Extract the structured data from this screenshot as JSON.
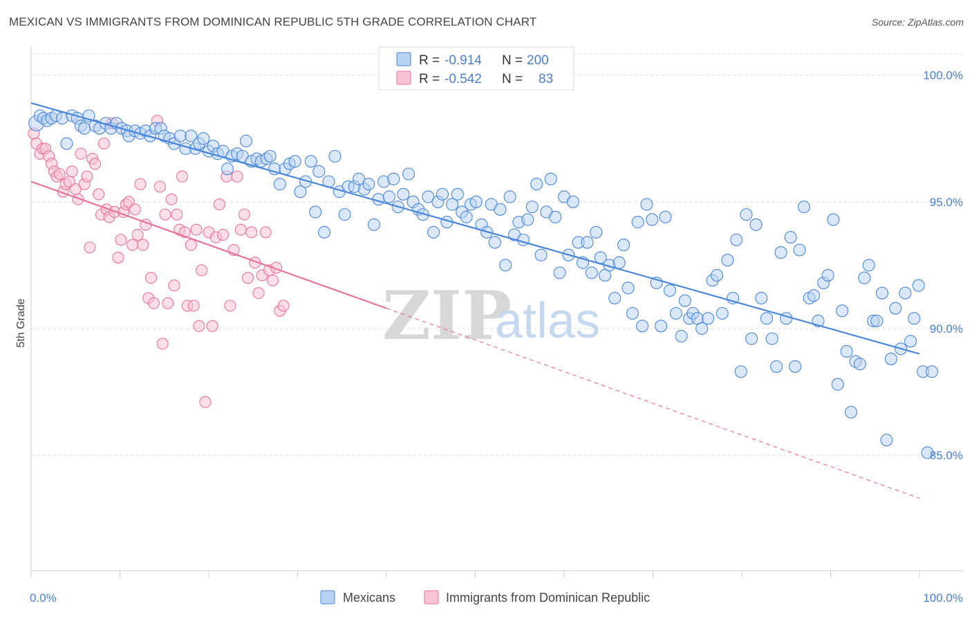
{
  "title": "MEXICAN VS IMMIGRANTS FROM DOMINICAN REPUBLIC 5TH GRADE CORRELATION CHART",
  "source": "Source: ZipAtlas.com",
  "watermark": {
    "zip": "ZIP",
    "atlas": "atlas"
  },
  "colors": {
    "blue": "#4a86d9",
    "blue_fill": "#b8d2f3",
    "pink": "#e8739a",
    "pink_fill": "#f7c3d4",
    "grid": "#dcdcdc",
    "tick_text": "#4a7fcf"
  },
  "legend_top": {
    "rows": [
      {
        "r_label": "R =",
        "r_value": "-0.914",
        "n_label": "N =",
        "n_value": "200"
      },
      {
        "r_label": "R =",
        "r_value": "-0.542",
        "n_label": "N =",
        "n_value": "83"
      }
    ]
  },
  "legend_bottom": {
    "items": [
      "Mexicans",
      "Immigrants from Dominican Republic"
    ]
  },
  "chart_data": {
    "type": "scatter",
    "title": "MEXICAN VS IMMIGRANTS FROM DOMINICAN REPUBLIC 5TH GRADE CORRELATION CHART",
    "xlabel": "",
    "ylabel": "5th Grade",
    "xlim": [
      0,
      100
    ],
    "ylim": [
      80.5,
      101.0
    ],
    "x_tick_labels": [
      "0.0%",
      "100.0%"
    ],
    "y_ticks": [
      85,
      90,
      95,
      100
    ],
    "y_tick_labels": [
      "85.0%",
      "90.0%",
      "95.0%",
      "100.0%"
    ],
    "grid": true,
    "legend_position": "bottom",
    "series": [
      {
        "name": "Mexicans",
        "r": -0.914,
        "n": 200,
        "trend": {
          "x": [
            0,
            100
          ],
          "y": [
            98.9,
            89.0
          ]
        },
        "points": [
          [
            0.6,
            98.1
          ],
          [
            1.0,
            98.4
          ],
          [
            1.4,
            98.3
          ],
          [
            1.8,
            98.2
          ],
          [
            2.3,
            98.3
          ],
          [
            2.8,
            98.4
          ],
          [
            3.5,
            98.3
          ],
          [
            4.0,
            97.3
          ],
          [
            4.6,
            98.4
          ],
          [
            5.2,
            98.3
          ],
          [
            5.6,
            98.0
          ],
          [
            6.0,
            97.9
          ],
          [
            6.5,
            98.4
          ],
          [
            7.2,
            98.0
          ],
          [
            7.7,
            97.9
          ],
          [
            8.4,
            98.1
          ],
          [
            9.0,
            97.9
          ],
          [
            9.6,
            98.1
          ],
          [
            10.2,
            97.9
          ],
          [
            10.8,
            97.8
          ],
          [
            11.0,
            97.6
          ],
          [
            11.7,
            97.8
          ],
          [
            12.3,
            97.7
          ],
          [
            12.9,
            97.8
          ],
          [
            13.4,
            97.6
          ],
          [
            14.0,
            97.9
          ],
          [
            14.6,
            97.9
          ],
          [
            15.0,
            97.6
          ],
          [
            15.6,
            97.5
          ],
          [
            16.1,
            97.3
          ],
          [
            16.8,
            97.6
          ],
          [
            17.4,
            97.1
          ],
          [
            18.0,
            97.6
          ],
          [
            18.5,
            97.1
          ],
          [
            18.9,
            97.3
          ],
          [
            19.4,
            97.5
          ],
          [
            20.0,
            97.0
          ],
          [
            20.5,
            97.2
          ],
          [
            21.0,
            96.9
          ],
          [
            21.6,
            97.0
          ],
          [
            22.1,
            96.3
          ],
          [
            22.6,
            96.8
          ],
          [
            23.2,
            96.9
          ],
          [
            23.8,
            96.8
          ],
          [
            24.2,
            97.4
          ],
          [
            24.8,
            96.6
          ],
          [
            25.4,
            96.7
          ],
          [
            25.9,
            96.6
          ],
          [
            26.5,
            96.7
          ],
          [
            26.9,
            96.8
          ],
          [
            27.4,
            96.3
          ],
          [
            28.0,
            95.7
          ],
          [
            28.6,
            96.3
          ],
          [
            29.1,
            96.5
          ],
          [
            29.7,
            96.6
          ],
          [
            30.3,
            95.4
          ],
          [
            30.9,
            95.8
          ],
          [
            31.5,
            96.6
          ],
          [
            32.0,
            94.6
          ],
          [
            32.4,
            96.2
          ],
          [
            33.0,
            93.8
          ],
          [
            33.5,
            95.8
          ],
          [
            34.2,
            96.8
          ],
          [
            34.7,
            95.4
          ],
          [
            35.3,
            94.5
          ],
          [
            35.7,
            95.6
          ],
          [
            36.4,
            95.6
          ],
          [
            36.9,
            95.9
          ],
          [
            37.5,
            95.5
          ],
          [
            38.0,
            95.7
          ],
          [
            38.6,
            94.1
          ],
          [
            39.1,
            95.1
          ],
          [
            39.7,
            95.8
          ],
          [
            40.3,
            95.2
          ],
          [
            40.8,
            95.9
          ],
          [
            41.3,
            94.8
          ],
          [
            41.9,
            95.3
          ],
          [
            42.5,
            96.1
          ],
          [
            43.0,
            95.0
          ],
          [
            43.6,
            94.7
          ],
          [
            44.1,
            94.5
          ],
          [
            44.7,
            95.2
          ],
          [
            45.3,
            93.8
          ],
          [
            45.8,
            95.0
          ],
          [
            46.3,
            95.3
          ],
          [
            46.8,
            94.2
          ],
          [
            47.4,
            94.9
          ],
          [
            48.0,
            95.3
          ],
          [
            48.5,
            94.6
          ],
          [
            49.0,
            94.4
          ],
          [
            49.5,
            94.9
          ],
          [
            50.1,
            95.0
          ],
          [
            50.7,
            94.1
          ],
          [
            51.3,
            93.8
          ],
          [
            51.8,
            94.9
          ],
          [
            52.2,
            93.4
          ],
          [
            52.8,
            94.7
          ],
          [
            53.4,
            92.5
          ],
          [
            53.9,
            95.2
          ],
          [
            54.4,
            93.7
          ],
          [
            54.9,
            94.2
          ],
          [
            55.4,
            93.5
          ],
          [
            55.9,
            94.3
          ],
          [
            56.4,
            94.8
          ],
          [
            56.9,
            95.7
          ],
          [
            57.4,
            92.9
          ],
          [
            58.0,
            94.6
          ],
          [
            58.5,
            95.9
          ],
          [
            59.0,
            94.4
          ],
          [
            59.5,
            92.2
          ],
          [
            60.0,
            95.2
          ],
          [
            60.5,
            92.9
          ],
          [
            61.0,
            95.0
          ],
          [
            61.6,
            93.4
          ],
          [
            62.1,
            92.6
          ],
          [
            62.6,
            93.4
          ],
          [
            63.1,
            92.2
          ],
          [
            63.6,
            93.8
          ],
          [
            64.1,
            92.8
          ],
          [
            64.6,
            92.1
          ],
          [
            65.1,
            92.5
          ],
          [
            65.7,
            91.2
          ],
          [
            66.2,
            92.6
          ],
          [
            66.7,
            93.3
          ],
          [
            67.2,
            91.6
          ],
          [
            67.7,
            90.6
          ],
          [
            68.3,
            94.2
          ],
          [
            68.8,
            90.1
          ],
          [
            69.3,
            94.9
          ],
          [
            69.9,
            94.3
          ],
          [
            70.4,
            91.8
          ],
          [
            70.9,
            90.1
          ],
          [
            71.4,
            94.4
          ],
          [
            71.9,
            91.5
          ],
          [
            72.6,
            90.6
          ],
          [
            73.2,
            89.7
          ],
          [
            73.6,
            91.1
          ],
          [
            74.1,
            90.4
          ],
          [
            74.5,
            90.6
          ],
          [
            75.0,
            90.4
          ],
          [
            75.5,
            90.0
          ],
          [
            76.2,
            90.4
          ],
          [
            76.7,
            91.9
          ],
          [
            77.2,
            92.1
          ],
          [
            77.8,
            90.6
          ],
          [
            78.4,
            92.7
          ],
          [
            79.0,
            91.2
          ],
          [
            79.4,
            93.5
          ],
          [
            79.9,
            88.3
          ],
          [
            80.5,
            94.5
          ],
          [
            81.1,
            89.6
          ],
          [
            81.6,
            94.1
          ],
          [
            82.2,
            91.2
          ],
          [
            82.8,
            90.4
          ],
          [
            83.4,
            89.6
          ],
          [
            83.9,
            88.5
          ],
          [
            84.4,
            93.0
          ],
          [
            85.0,
            90.4
          ],
          [
            85.5,
            93.6
          ],
          [
            86.0,
            88.5
          ],
          [
            86.5,
            93.1
          ],
          [
            87.0,
            94.8
          ],
          [
            87.6,
            91.2
          ],
          [
            88.1,
            91.3
          ],
          [
            88.6,
            90.3
          ],
          [
            89.2,
            91.8
          ],
          [
            89.7,
            92.1
          ],
          [
            90.3,
            94.3
          ],
          [
            90.8,
            87.8
          ],
          [
            91.3,
            90.7
          ],
          [
            91.8,
            89.1
          ],
          [
            92.3,
            86.7
          ],
          [
            92.8,
            88.7
          ],
          [
            93.3,
            88.6
          ],
          [
            93.8,
            92.0
          ],
          [
            94.3,
            92.5
          ],
          [
            94.8,
            90.3
          ],
          [
            95.2,
            90.3
          ],
          [
            95.8,
            91.4
          ],
          [
            96.3,
            85.6
          ],
          [
            96.8,
            88.8
          ],
          [
            97.3,
            90.8
          ],
          [
            97.9,
            89.2
          ],
          [
            98.4,
            91.4
          ],
          [
            99.0,
            89.5
          ],
          [
            99.4,
            90.4
          ],
          [
            99.9,
            91.7
          ],
          [
            100.4,
            88.3
          ],
          [
            100.9,
            85.1
          ],
          [
            101.4,
            88.3
          ]
        ]
      },
      {
        "name": "Immigrants from Dominican Republic",
        "r": -0.542,
        "n": 83,
        "trend": {
          "x": [
            0,
            100
          ],
          "y": [
            95.8,
            83.3
          ]
        },
        "trend_solid_until_x": 40,
        "points": [
          [
            0.3,
            97.7
          ],
          [
            0.6,
            97.3
          ],
          [
            1.0,
            96.9
          ],
          [
            1.3,
            97.1
          ],
          [
            1.6,
            97.1
          ],
          [
            2.0,
            96.8
          ],
          [
            2.3,
            96.5
          ],
          [
            2.6,
            96.2
          ],
          [
            2.9,
            96.0
          ],
          [
            3.2,
            96.1
          ],
          [
            3.6,
            95.4
          ],
          [
            3.9,
            95.7
          ],
          [
            4.3,
            95.8
          ],
          [
            4.6,
            96.2
          ],
          [
            5.0,
            95.5
          ],
          [
            5.3,
            95.1
          ],
          [
            5.6,
            96.9
          ],
          [
            6.0,
            95.7
          ],
          [
            6.3,
            96.0
          ],
          [
            6.6,
            93.2
          ],
          [
            6.9,
            96.7
          ],
          [
            7.2,
            96.5
          ],
          [
            7.6,
            95.3
          ],
          [
            7.9,
            94.5
          ],
          [
            8.2,
            97.3
          ],
          [
            8.5,
            94.7
          ],
          [
            8.8,
            94.4
          ],
          [
            9.1,
            98.1
          ],
          [
            9.4,
            94.6
          ],
          [
            9.8,
            92.8
          ],
          [
            10.1,
            93.5
          ],
          [
            10.4,
            94.6
          ],
          [
            10.7,
            94.9
          ],
          [
            11.0,
            95.0
          ],
          [
            11.4,
            93.3
          ],
          [
            11.7,
            94.7
          ],
          [
            12.0,
            93.7
          ],
          [
            12.3,
            95.7
          ],
          [
            12.6,
            93.3
          ],
          [
            12.9,
            94.1
          ],
          [
            13.2,
            91.2
          ],
          [
            13.5,
            92.0
          ],
          [
            13.8,
            91.0
          ],
          [
            14.2,
            98.2
          ],
          [
            14.5,
            95.6
          ],
          [
            14.8,
            89.4
          ],
          [
            15.1,
            94.5
          ],
          [
            15.4,
            91.0
          ],
          [
            15.8,
            95.1
          ],
          [
            16.1,
            91.7
          ],
          [
            16.4,
            94.5
          ],
          [
            16.7,
            93.9
          ],
          [
            17.0,
            96.0
          ],
          [
            17.3,
            93.8
          ],
          [
            17.6,
            90.9
          ],
          [
            18.0,
            93.3
          ],
          [
            18.3,
            90.9
          ],
          [
            18.6,
            93.9
          ],
          [
            18.9,
            90.1
          ],
          [
            19.2,
            92.3
          ],
          [
            19.6,
            87.1
          ],
          [
            20.0,
            93.8
          ],
          [
            20.4,
            90.1
          ],
          [
            20.8,
            93.6
          ],
          [
            21.2,
            94.9
          ],
          [
            21.6,
            93.7
          ],
          [
            22.0,
            96.0
          ],
          [
            22.4,
            90.9
          ],
          [
            22.8,
            93.1
          ],
          [
            23.2,
            96.0
          ],
          [
            23.6,
            93.9
          ],
          [
            24.0,
            94.5
          ],
          [
            24.4,
            92.0
          ],
          [
            24.8,
            93.8
          ],
          [
            25.2,
            92.6
          ],
          [
            25.6,
            91.4
          ],
          [
            26.0,
            92.1
          ],
          [
            26.4,
            93.8
          ],
          [
            26.8,
            92.3
          ],
          [
            27.2,
            91.9
          ],
          [
            27.6,
            92.4
          ],
          [
            28.0,
            90.7
          ],
          [
            28.4,
            90.9
          ]
        ]
      }
    ]
  }
}
